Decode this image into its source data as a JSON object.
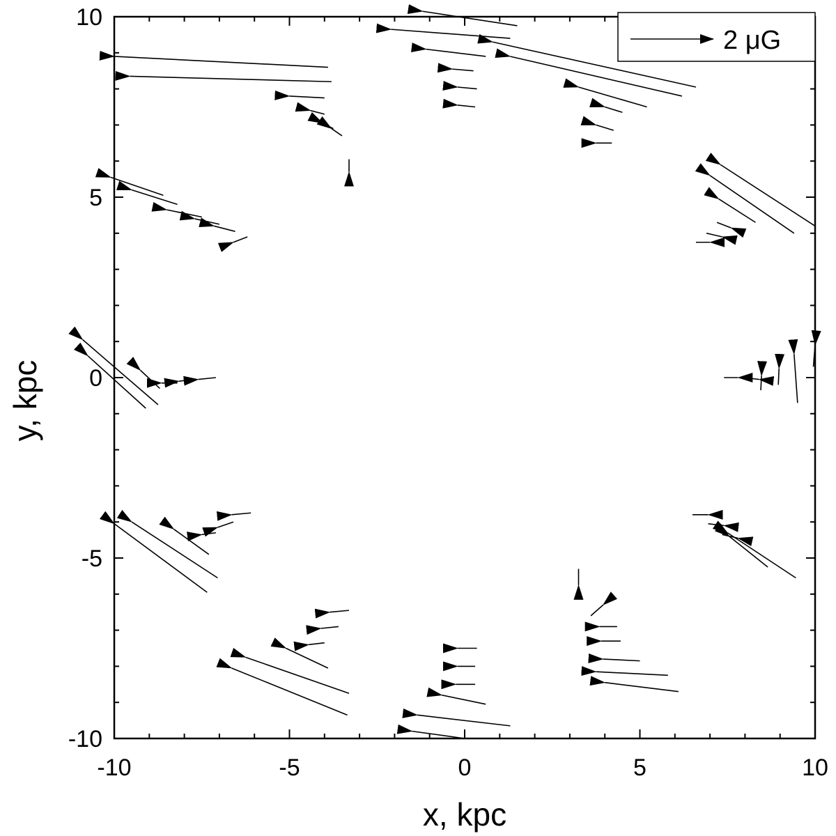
{
  "chart_data": {
    "type": "quiver",
    "xlabel": "x, kpc",
    "ylabel": "y, kpc",
    "xlim": [
      -10,
      10
    ],
    "ylim": [
      -10,
      10
    ],
    "x_ticks": [
      "-10",
      "-5",
      "0",
      "5",
      "10"
    ],
    "y_ticks": [
      "-10",
      "-5",
      "0",
      "5",
      "10"
    ],
    "grid": false,
    "legend": {
      "label": "2 μG",
      "position": "top-right",
      "reference_length_uG": 2
    },
    "color": "#000000",
    "vectors": [
      {
        "x": -3.3,
        "y": 6.05,
        "dx": 0.0,
        "dy": -0.35
      },
      {
        "x": -3.5,
        "y": 6.7,
        "dx": -0.3,
        "dy": 0.2
      },
      {
        "x": -3.75,
        "y": 6.9,
        "dx": -0.3,
        "dy": 0.15
      },
      {
        "x": -4.0,
        "y": 7.3,
        "dx": -0.4,
        "dy": 0.1
      },
      {
        "x": -4.0,
        "y": 7.75,
        "dx": -1.0,
        "dy": 0.05
      },
      {
        "x": -3.8,
        "y": 8.2,
        "dx": -5.75,
        "dy": 0.15
      },
      {
        "x": -3.9,
        "y": 8.6,
        "dx": -6.1,
        "dy": 0.3
      },
      {
        "x": 0.3,
        "y": 7.5,
        "dx": -0.5,
        "dy": 0.05
      },
      {
        "x": 0.35,
        "y": 8.0,
        "dx": -0.55,
        "dy": 0.05
      },
      {
        "x": 0.25,
        "y": 8.5,
        "dx": -0.6,
        "dy": 0.05
      },
      {
        "x": 0.6,
        "y": 8.9,
        "dx": -1.7,
        "dy": 0.2
      },
      {
        "x": 1.3,
        "y": 9.4,
        "dx": -3.4,
        "dy": 0.25
      },
      {
        "x": 1.5,
        "y": 9.75,
        "dx": -2.7,
        "dy": 0.4
      },
      {
        "x": 4.2,
        "y": 6.5,
        "dx": -0.45,
        "dy": 0.0
      },
      {
        "x": 4.25,
        "y": 6.85,
        "dx": -0.5,
        "dy": 0.15
      },
      {
        "x": 4.5,
        "y": 7.35,
        "dx": -0.5,
        "dy": 0.15
      },
      {
        "x": 5.2,
        "y": 7.5,
        "dx": -1.95,
        "dy": 0.55
      },
      {
        "x": 6.2,
        "y": 7.8,
        "dx": -4.9,
        "dy": 1.1
      },
      {
        "x": 6.6,
        "y": 8.05,
        "dx": -5.8,
        "dy": 1.25
      },
      {
        "x": -6.2,
        "y": 3.9,
        "dx": -0.4,
        "dy": -0.15
      },
      {
        "x": -6.55,
        "y": 4.05,
        "dx": -0.6,
        "dy": 0.15
      },
      {
        "x": -7.0,
        "y": 4.25,
        "dx": -0.7,
        "dy": 0.15
      },
      {
        "x": -7.5,
        "y": 4.45,
        "dx": -1.0,
        "dy": 0.2
      },
      {
        "x": -8.2,
        "y": 4.8,
        "dx": -1.3,
        "dy": 0.4
      },
      {
        "x": -8.6,
        "y": 5.05,
        "dx": -1.5,
        "dy": 0.5
      },
      {
        "x": 6.6,
        "y": 3.75,
        "dx": 0.4,
        "dy": 0.0
      },
      {
        "x": 6.9,
        "y": 4.0,
        "dx": 0.45,
        "dy": -0.1
      },
      {
        "x": 7.2,
        "y": 4.3,
        "dx": 0.4,
        "dy": -0.15
      },
      {
        "x": 8.3,
        "y": 4.3,
        "dx": -1.05,
        "dy": 0.65
      },
      {
        "x": 9.4,
        "y": 4.0,
        "dx": -2.4,
        "dy": 1.6
      },
      {
        "x": 10.0,
        "y": 4.2,
        "dx": -2.7,
        "dy": 1.7
      },
      {
        "x": -7.1,
        "y": 0.0,
        "dx": -0.5,
        "dy": -0.05
      },
      {
        "x": -7.7,
        "y": -0.05,
        "dx": -0.45,
        "dy": -0.05
      },
      {
        "x": -8.2,
        "y": -0.15,
        "dx": -0.45,
        "dy": 0.0
      },
      {
        "x": -8.7,
        "y": -0.3,
        "dx": -0.55,
        "dy": 0.5
      },
      {
        "x": -8.75,
        "y": -0.75,
        "dx": -2.15,
        "dy": 1.8
      },
      {
        "x": -9.1,
        "y": -0.85,
        "dx": -1.65,
        "dy": 1.45
      },
      {
        "x": 7.4,
        "y": 0.0,
        "dx": 0.4,
        "dy": 0.0
      },
      {
        "x": 7.95,
        "y": 0.0,
        "dx": 0.45,
        "dy": -0.05
      },
      {
        "x": 8.45,
        "y": -0.35,
        "dx": 0.02,
        "dy": 0.4
      },
      {
        "x": 8.95,
        "y": -0.2,
        "dx": 0.02,
        "dy": 0.45
      },
      {
        "x": 9.5,
        "y": -0.7,
        "dx": -0.1,
        "dy": 1.35
      },
      {
        "x": 9.95,
        "y": 0.3,
        "dx": 0.05,
        "dy": 0.6
      },
      {
        "x": -6.1,
        "y": -3.75,
        "dx": -0.55,
        "dy": -0.05
      },
      {
        "x": -6.6,
        "y": -4.0,
        "dx": -0.45,
        "dy": -0.15
      },
      {
        "x": -7.1,
        "y": -4.3,
        "dx": -0.4,
        "dy": -0.05
      },
      {
        "x": -7.3,
        "y": -4.9,
        "dx": -1.0,
        "dy": 0.7
      },
      {
        "x": -7.05,
        "y": -5.55,
        "dx": -2.45,
        "dy": 1.55
      },
      {
        "x": -7.35,
        "y": -5.95,
        "dx": -2.65,
        "dy": 1.9
      },
      {
        "x": 6.5,
        "y": -3.8,
        "dx": 0.45,
        "dy": 0.0
      },
      {
        "x": 6.95,
        "y": -4.05,
        "dx": 0.45,
        "dy": -0.05
      },
      {
        "x": 7.35,
        "y": -4.35,
        "dx": 0.45,
        "dy": -0.1
      },
      {
        "x": 9.45,
        "y": -5.55,
        "dx": -1.95,
        "dy": 1.25
      },
      {
        "x": 8.65,
        "y": -5.25,
        "dx": -1.1,
        "dy": 0.85
      },
      {
        "x": 3.25,
        "y": -5.3,
        "dx": 0.0,
        "dy": -0.45
      },
      {
        "x": 3.6,
        "y": -6.6,
        "dx": 0.35,
        "dy": 0.3
      },
      {
        "x": 4.35,
        "y": -6.9,
        "dx": -0.5,
        "dy": 0.0
      },
      {
        "x": 4.45,
        "y": -7.3,
        "dx": -0.55,
        "dy": 0.0
      },
      {
        "x": 5.0,
        "y": -7.85,
        "dx": -1.05,
        "dy": 0.05
      },
      {
        "x": 5.8,
        "y": -8.25,
        "dx": -2.05,
        "dy": 0.1
      },
      {
        "x": 6.1,
        "y": -8.7,
        "dx": -2.1,
        "dy": 0.25
      },
      {
        "x": 0.35,
        "y": -7.5,
        "dx": -0.55,
        "dy": 0.0
      },
      {
        "x": 0.3,
        "y": -8.0,
        "dx": -0.5,
        "dy": 0.0
      },
      {
        "x": 0.3,
        "y": -8.5,
        "dx": -0.55,
        "dy": 0.0
      },
      {
        "x": 0.6,
        "y": -9.05,
        "dx": -1.25,
        "dy": 0.25
      },
      {
        "x": 1.3,
        "y": -9.65,
        "dx": -2.65,
        "dy": 0.3
      },
      {
        "x": 0.0,
        "y": -10.0,
        "dx": -1.5,
        "dy": 0.2
      },
      {
        "x": -3.3,
        "y": -6.45,
        "dx": -0.55,
        "dy": -0.05
      },
      {
        "x": -3.6,
        "y": -6.9,
        "dx": -0.5,
        "dy": -0.05
      },
      {
        "x": -4.0,
        "y": -7.35,
        "dx": -0.45,
        "dy": -0.05
      },
      {
        "x": -3.9,
        "y": -8.05,
        "dx": -1.2,
        "dy": 0.55
      },
      {
        "x": -3.3,
        "y": -8.75,
        "dx": -2.95,
        "dy": 1.0
      },
      {
        "x": -3.35,
        "y": -9.35,
        "dx": -3.3,
        "dy": 1.3
      }
    ]
  }
}
